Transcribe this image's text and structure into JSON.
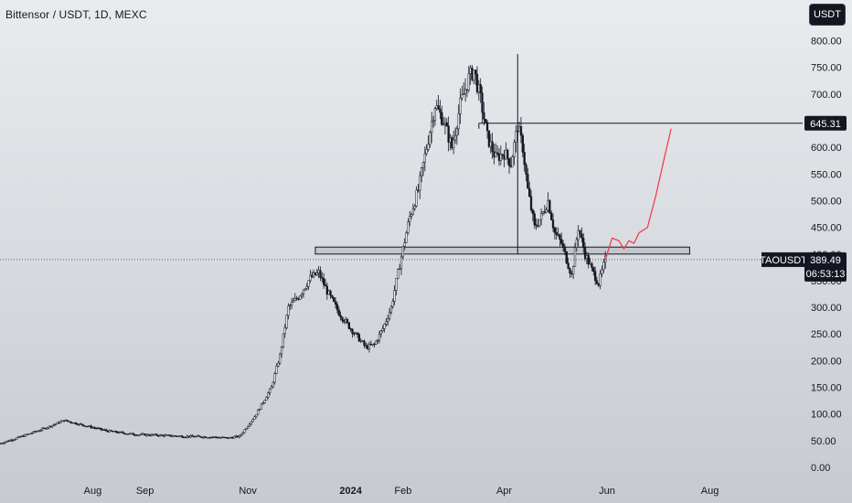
{
  "header": {
    "title": "Bittensor / USDT, 1D, MEXC",
    "currency_button": "USDT"
  },
  "chart_data": {
    "type": "candlestick",
    "title": "Bittensor / USDT, 1D, MEXC",
    "symbol": "TAOUSDT",
    "y_axis": {
      "ticks": [
        "800.00",
        "750.00",
        "700.00",
        "650.00",
        "600.00",
        "550.00",
        "500.00",
        "450.00",
        "400.00",
        "350.00",
        "300.00",
        "250.00",
        "200.00",
        "150.00",
        "100.00",
        "50.00",
        "0.00"
      ],
      "range": [
        -12,
        825
      ]
    },
    "x_axis": {
      "ticks": [
        {
          "label": "Aug",
          "date": "2023-08-01"
        },
        {
          "label": "Sep",
          "date": "2023-09-01"
        },
        {
          "label": "Nov",
          "date": "2023-11-01"
        },
        {
          "label": "2024",
          "date": "2024-01-01",
          "bold": true
        },
        {
          "label": "Feb",
          "date": "2024-02-01"
        },
        {
          "label": "Apr",
          "date": "2024-04-01"
        },
        {
          "label": "Jun",
          "date": "2024-06-01"
        },
        {
          "label": "Aug",
          "date": "2024-08-01"
        }
      ],
      "range": [
        "2023-06-07",
        "2024-09-25"
      ]
    },
    "price_path": [
      [
        "2023-06-07",
        45
      ],
      [
        "2023-06-20",
        58
      ],
      [
        "2023-07-05",
        75
      ],
      [
        "2023-07-15",
        88
      ],
      [
        "2023-07-25",
        80
      ],
      [
        "2023-08-10",
        68
      ],
      [
        "2023-08-25",
        62
      ],
      [
        "2023-09-10",
        60
      ],
      [
        "2023-09-25",
        58
      ],
      [
        "2023-10-10",
        57
      ],
      [
        "2023-10-20",
        55
      ],
      [
        "2023-10-27",
        58
      ],
      [
        "2023-11-05",
        95
      ],
      [
        "2023-11-15",
        150
      ],
      [
        "2023-11-20",
        210
      ],
      [
        "2023-11-25",
        300
      ],
      [
        "2023-12-01",
        320
      ],
      [
        "2023-12-08",
        355
      ],
      [
        "2023-12-13",
        365
      ],
      [
        "2023-12-18",
        330
      ],
      [
        "2023-12-25",
        290
      ],
      [
        "2024-01-01",
        260
      ],
      [
        "2024-01-10",
        225
      ],
      [
        "2024-01-15",
        230
      ],
      [
        "2024-01-20",
        260
      ],
      [
        "2024-01-25",
        300
      ],
      [
        "2024-01-30",
        380
      ],
      [
        "2024-02-05",
        470
      ],
      [
        "2024-02-10",
        520
      ],
      [
        "2024-02-15",
        600
      ],
      [
        "2024-02-20",
        680
      ],
      [
        "2024-02-25",
        650
      ],
      [
        "2024-03-01",
        600
      ],
      [
        "2024-03-06",
        680
      ],
      [
        "2024-03-11",
        730
      ],
      [
        "2024-03-14",
        745
      ],
      [
        "2024-03-18",
        690
      ],
      [
        "2024-03-22",
        620
      ],
      [
        "2024-03-27",
        580
      ],
      [
        "2024-04-01",
        590
      ],
      [
        "2024-04-05",
        570
      ],
      [
        "2024-04-09",
        640
      ],
      [
        "2024-04-12",
        600
      ],
      [
        "2024-04-15",
        520
      ],
      [
        "2024-04-19",
        450
      ],
      [
        "2024-04-23",
        470
      ],
      [
        "2024-04-27",
        500
      ],
      [
        "2024-05-01",
        440
      ],
      [
        "2024-05-05",
        420
      ],
      [
        "2024-05-08",
        390
      ],
      [
        "2024-05-11",
        360
      ],
      [
        "2024-05-15",
        450
      ],
      [
        "2024-05-19",
        400
      ],
      [
        "2024-05-23",
        370
      ],
      [
        "2024-05-27",
        345
      ],
      [
        "2024-05-31",
        389
      ]
    ],
    "spike_wick": {
      "date": "2024-04-09",
      "high": 775,
      "low": 400
    },
    "support_zone": {
      "from": "2023-12-11",
      "to": "2024-07-20",
      "low": 400,
      "high": 413
    },
    "resistance_line": {
      "from": "2024-03-17",
      "price": 645.31
    },
    "projection_path": [
      [
        "2024-05-31",
        389
      ],
      [
        "2024-06-04",
        430
      ],
      [
        "2024-06-08",
        425
      ],
      [
        "2024-06-11",
        410
      ],
      [
        "2024-06-14",
        425
      ],
      [
        "2024-06-17",
        420
      ],
      [
        "2024-06-20",
        440
      ],
      [
        "2024-06-25",
        450
      ],
      [
        "2024-06-30",
        510
      ],
      [
        "2024-07-05",
        580
      ],
      [
        "2024-07-09",
        635
      ]
    ],
    "current_price_line": 389.49,
    "price_labels": [
      {
        "name": "resistance",
        "text": "645.31",
        "price": 645.31
      },
      {
        "name": "last-price",
        "text": "389.49",
        "price": 389.49,
        "symbol": "TAOUSDT",
        "countdown": "06:53:13"
      }
    ],
    "colors": {
      "candle": "#131722",
      "projection": "#f23645",
      "label_bg": "#131722",
      "label_text": "#ffffff",
      "zone_fill": "#b2b5be",
      "zone_stroke": "#131722"
    },
    "grid": false
  }
}
